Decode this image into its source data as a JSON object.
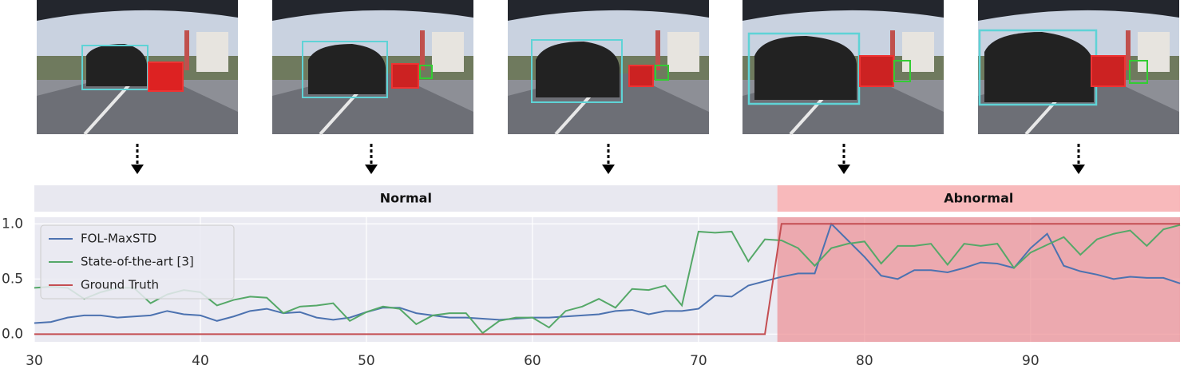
{
  "chart_data": {
    "type": "line",
    "x": [
      30,
      31,
      32,
      33,
      34,
      35,
      36,
      37,
      38,
      39,
      40,
      41,
      42,
      43,
      44,
      45,
      46,
      47,
      48,
      49,
      50,
      51,
      52,
      53,
      54,
      55,
      56,
      57,
      58,
      59,
      60,
      61,
      62,
      63,
      64,
      65,
      66,
      67,
      68,
      69,
      70,
      71,
      72,
      73,
      74,
      75,
      76,
      77,
      78,
      79,
      80,
      81,
      82,
      83,
      84,
      85,
      86,
      87,
      88,
      89,
      90,
      91,
      92,
      93,
      94,
      95,
      96,
      97,
      98,
      99
    ],
    "series": [
      {
        "name": "FOL-MaxSTD",
        "color": "#4c72b0",
        "values": [
          0.1,
          0.11,
          0.15,
          0.17,
          0.17,
          0.15,
          0.16,
          0.17,
          0.21,
          0.18,
          0.17,
          0.12,
          0.16,
          0.21,
          0.23,
          0.19,
          0.2,
          0.15,
          0.13,
          0.15,
          0.2,
          0.24,
          0.24,
          0.19,
          0.17,
          0.15,
          0.15,
          0.14,
          0.13,
          0.14,
          0.15,
          0.15,
          0.16,
          0.17,
          0.18,
          0.21,
          0.22,
          0.18,
          0.21,
          0.21,
          0.23,
          0.35,
          0.34,
          0.44,
          0.48,
          0.52,
          0.55,
          0.55,
          1.0,
          0.85,
          0.7,
          0.53,
          0.5,
          0.58,
          0.58,
          0.56,
          0.6,
          0.65,
          0.64,
          0.6,
          0.78,
          0.91,
          0.62,
          0.57,
          0.54,
          0.5,
          0.52,
          0.51,
          0.51,
          0.46
        ]
      },
      {
        "name": "State-of-the-art [3]",
        "color": "#55a868",
        "values": [
          0.42,
          0.43,
          0.42,
          0.32,
          0.38,
          0.42,
          0.42,
          0.28,
          0.36,
          0.4,
          0.38,
          0.26,
          0.31,
          0.34,
          0.33,
          0.19,
          0.25,
          0.26,
          0.28,
          0.12,
          0.2,
          0.25,
          0.23,
          0.09,
          0.17,
          0.19,
          0.19,
          0.01,
          0.12,
          0.15,
          0.15,
          0.06,
          0.21,
          0.25,
          0.32,
          0.24,
          0.41,
          0.4,
          0.44,
          0.26,
          0.93,
          0.92,
          0.93,
          0.66,
          0.86,
          0.85,
          0.78,
          0.62,
          0.78,
          0.82,
          0.84,
          0.64,
          0.8,
          0.8,
          0.82,
          0.63,
          0.82,
          0.8,
          0.82,
          0.6,
          0.74,
          0.81,
          0.88,
          0.72,
          0.86,
          0.91,
          0.94,
          0.8,
          0.95,
          0.99
        ]
      },
      {
        "name": "Ground Truth",
        "color": "#c44e52",
        "values": [
          0,
          0,
          0,
          0,
          0,
          0,
          0,
          0,
          0,
          0,
          0,
          0,
          0,
          0,
          0,
          0,
          0,
          0,
          0,
          0,
          0,
          0,
          0,
          0,
          0,
          0,
          0,
          0,
          0,
          0,
          0,
          0,
          0,
          0,
          0,
          0,
          0,
          0,
          0,
          0,
          0,
          0,
          0,
          0,
          0,
          1,
          1,
          1,
          1,
          1,
          1,
          1,
          1,
          1,
          1,
          1,
          1,
          1,
          1,
          1,
          1,
          1,
          1,
          1,
          1,
          1,
          1,
          1,
          1,
          1
        ]
      }
    ],
    "regions": [
      {
        "label": "Normal",
        "start": 30,
        "end": 74.75,
        "color": "#e8e8f0",
        "shade": null
      },
      {
        "label": "Abnormal",
        "start": 74.75,
        "end": 99,
        "color": "#f8b9bb",
        "shade": "#ec8d93"
      }
    ],
    "xlim": [
      30,
      99
    ],
    "ylim": [
      -0.07,
      1.06
    ],
    "xticks": [
      30,
      40,
      50,
      60,
      70,
      80,
      90
    ],
    "yticks": [
      {
        "value": 0,
        "label": "0.0"
      },
      {
        "value": 0.5,
        "label": "0.5"
      },
      {
        "value": 1,
        "label": "1.0"
      }
    ],
    "grid": true,
    "legend": "upper-left"
  }
}
